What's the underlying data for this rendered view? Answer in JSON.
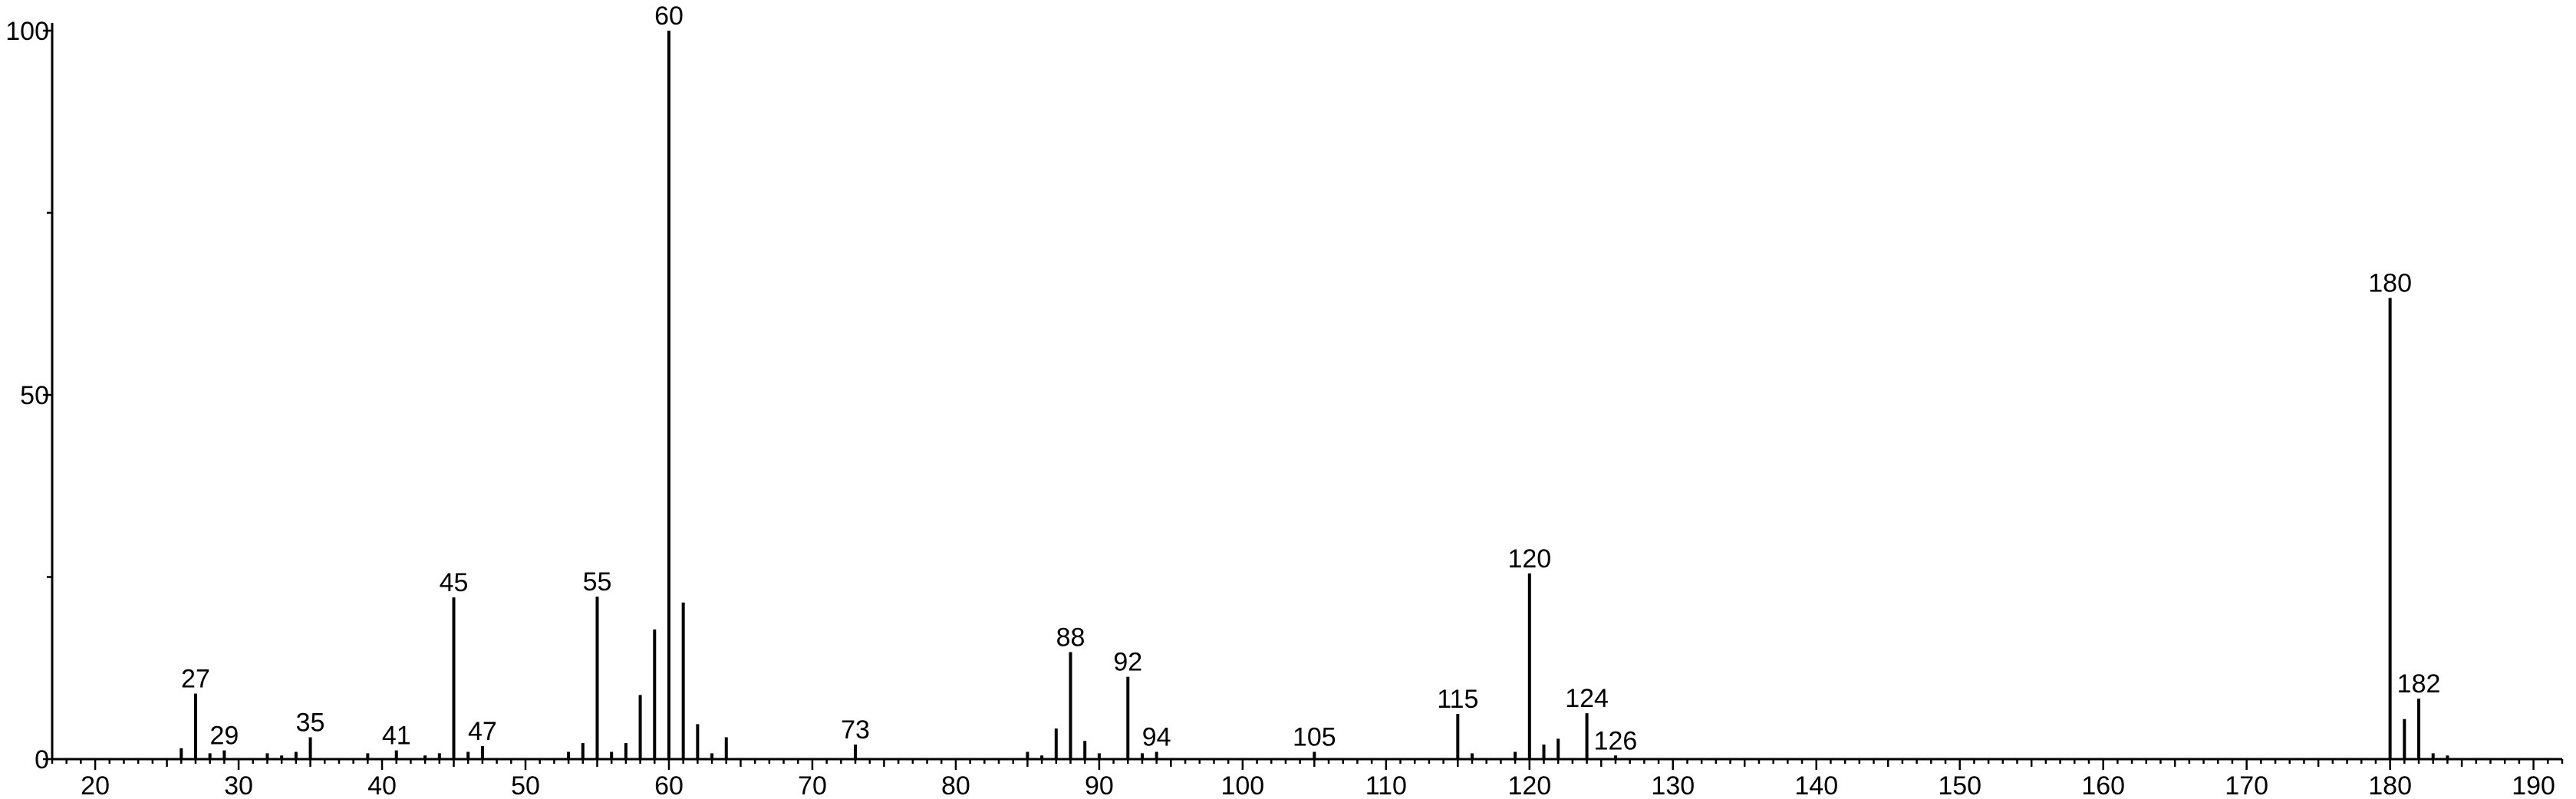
{
  "chart_data": {
    "type": "bar",
    "title": "",
    "xlabel": "",
    "ylabel": "",
    "xlim": [
      17,
      192
    ],
    "ylim": [
      0,
      100
    ],
    "grid": false,
    "x_ticks": [
      20,
      30,
      40,
      50,
      60,
      70,
      80,
      90,
      100,
      110,
      120,
      130,
      140,
      150,
      160,
      170,
      180,
      190
    ],
    "y_ticks": [
      0,
      50,
      100
    ],
    "peaks": [
      {
        "mz": 26,
        "intensity": 1.5
      },
      {
        "mz": 27,
        "intensity": 9,
        "label": "27"
      },
      {
        "mz": 28,
        "intensity": 0.8
      },
      {
        "mz": 29,
        "intensity": 1.2,
        "label": "29"
      },
      {
        "mz": 32,
        "intensity": 0.8
      },
      {
        "mz": 33,
        "intensity": 0.5
      },
      {
        "mz": 34,
        "intensity": 1
      },
      {
        "mz": 35,
        "intensity": 3,
        "label": "35"
      },
      {
        "mz": 39,
        "intensity": 0.8
      },
      {
        "mz": 41,
        "intensity": 1.2,
        "label": "41"
      },
      {
        "mz": 43,
        "intensity": 0.5
      },
      {
        "mz": 44,
        "intensity": 0.8
      },
      {
        "mz": 45,
        "intensity": 22.2,
        "label": "45"
      },
      {
        "mz": 46,
        "intensity": 1
      },
      {
        "mz": 47,
        "intensity": 1.8,
        "label": "47"
      },
      {
        "mz": 53,
        "intensity": 1
      },
      {
        "mz": 54,
        "intensity": 2.2
      },
      {
        "mz": 55,
        "intensity": 22.3,
        "label": "55"
      },
      {
        "mz": 56,
        "intensity": 1
      },
      {
        "mz": 57,
        "intensity": 2.2
      },
      {
        "mz": 58,
        "intensity": 8.8
      },
      {
        "mz": 59,
        "intensity": 17.8
      },
      {
        "mz": 60,
        "intensity": 100,
        "label": "60"
      },
      {
        "mz": 61,
        "intensity": 21.5
      },
      {
        "mz": 62,
        "intensity": 4.8
      },
      {
        "mz": 63,
        "intensity": 0.8
      },
      {
        "mz": 64,
        "intensity": 3
      },
      {
        "mz": 73,
        "intensity": 2,
        "label": "73"
      },
      {
        "mz": 85,
        "intensity": 1
      },
      {
        "mz": 86,
        "intensity": 0.5
      },
      {
        "mz": 87,
        "intensity": 4.2
      },
      {
        "mz": 88,
        "intensity": 14.7,
        "label": "88"
      },
      {
        "mz": 89,
        "intensity": 2.5
      },
      {
        "mz": 90,
        "intensity": 0.8
      },
      {
        "mz": 92,
        "intensity": 11.3,
        "label": "92"
      },
      {
        "mz": 93,
        "intensity": 0.8
      },
      {
        "mz": 94,
        "intensity": 1,
        "label": "94"
      },
      {
        "mz": 105,
        "intensity": 1,
        "label": "105"
      },
      {
        "mz": 115,
        "intensity": 6.2,
        "label": "115"
      },
      {
        "mz": 116,
        "intensity": 0.8
      },
      {
        "mz": 119,
        "intensity": 1
      },
      {
        "mz": 120,
        "intensity": 25.5,
        "label": "120"
      },
      {
        "mz": 121,
        "intensity": 2
      },
      {
        "mz": 122,
        "intensity": 2.8
      },
      {
        "mz": 124,
        "intensity": 6.3,
        "label": "124"
      },
      {
        "mz": 126,
        "intensity": 0.5,
        "label": "126"
      },
      {
        "mz": 180,
        "intensity": 63.3,
        "label": "180"
      },
      {
        "mz": 181,
        "intensity": 5.5
      },
      {
        "mz": 182,
        "intensity": 8.3,
        "label": "182"
      },
      {
        "mz": 183,
        "intensity": 0.8
      },
      {
        "mz": 184,
        "intensity": 0.5
      }
    ]
  }
}
